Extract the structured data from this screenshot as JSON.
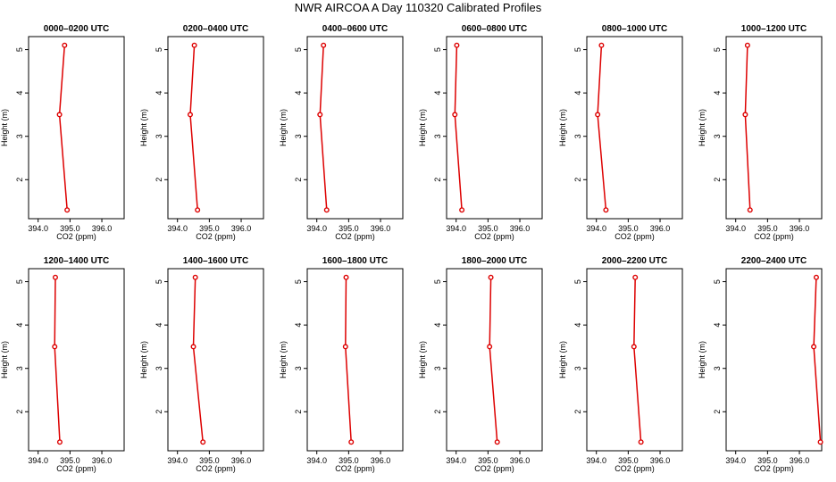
{
  "title": "NWR AIRCOA A  Day 110320  Calibrated Profiles",
  "colors": {
    "series": "#dd0000",
    "axis": "#000000",
    "background": "#ffffff"
  },
  "chart_data": [
    {
      "type": "line",
      "title": "0000–0200 UTC",
      "xlabel": "CO2 (ppm)",
      "ylabel": "Height (m)",
      "xlim": [
        393.7,
        396.7
      ],
      "ylim": [
        1.1,
        5.3
      ],
      "xticks": [
        "394.0",
        "395.0",
        "396.0"
      ],
      "yticks": [
        "2",
        "3",
        "4",
        "5"
      ],
      "x": [
        394.83,
        394.67,
        394.91
      ],
      "y": [
        5.1,
        3.5,
        1.3
      ]
    },
    {
      "type": "line",
      "title": "0200–0400 UTC",
      "xlabel": "CO2 (ppm)",
      "ylabel": "Height (m)",
      "xlim": [
        393.7,
        396.7
      ],
      "ylim": [
        1.1,
        5.3
      ],
      "xticks": [
        "394.0",
        "395.0",
        "396.0"
      ],
      "yticks": [
        "2",
        "3",
        "4",
        "5"
      ],
      "x": [
        394.53,
        394.4,
        394.63
      ],
      "y": [
        5.1,
        3.5,
        1.3
      ]
    },
    {
      "type": "line",
      "title": "0400–0600 UTC",
      "xlabel": "CO2 (ppm)",
      "ylabel": "Height (m)",
      "xlim": [
        393.7,
        396.7
      ],
      "ylim": [
        1.1,
        5.3
      ],
      "xticks": [
        "394.0",
        "395.0",
        "396.0"
      ],
      "yticks": [
        "2",
        "3",
        "4",
        "5"
      ],
      "x": [
        394.21,
        394.1,
        394.31
      ],
      "y": [
        5.1,
        3.5,
        1.3
      ]
    },
    {
      "type": "line",
      "title": "0600–0800 UTC",
      "xlabel": "CO2 (ppm)",
      "ylabel": "Height (m)",
      "xlim": [
        393.7,
        396.7
      ],
      "ylim": [
        1.1,
        5.3
      ],
      "xticks": [
        "394.0",
        "395.0",
        "396.0"
      ],
      "yticks": [
        "2",
        "3",
        "4",
        "5"
      ],
      "x": [
        394.02,
        393.96,
        394.18
      ],
      "y": [
        5.1,
        3.5,
        1.3
      ]
    },
    {
      "type": "line",
      "title": "0800–1000 UTC",
      "xlabel": "CO2 (ppm)",
      "ylabel": "Height (m)",
      "xlim": [
        393.7,
        396.7
      ],
      "ylim": [
        1.1,
        5.3
      ],
      "xticks": [
        "394.0",
        "395.0",
        "396.0"
      ],
      "yticks": [
        "2",
        "3",
        "4",
        "5"
      ],
      "x": [
        394.16,
        394.04,
        394.3
      ],
      "y": [
        5.1,
        3.5,
        1.3
      ]
    },
    {
      "type": "line",
      "title": "1000–1200 UTC",
      "xlabel": "CO2 (ppm)",
      "ylabel": "Height (m)",
      "xlim": [
        393.7,
        396.7
      ],
      "ylim": [
        1.1,
        5.3
      ],
      "xticks": [
        "394.0",
        "395.0",
        "396.0"
      ],
      "yticks": [
        "2",
        "3",
        "4",
        "5"
      ],
      "x": [
        394.37,
        394.3,
        394.45
      ],
      "y": [
        5.1,
        3.5,
        1.3
      ]
    },
    {
      "type": "line",
      "title": "1200–1400 UTC",
      "xlabel": "CO2 (ppm)",
      "ylabel": "Height (m)",
      "xlim": [
        393.7,
        396.7
      ],
      "ylim": [
        1.1,
        5.3
      ],
      "xticks": [
        "394.0",
        "395.0",
        "396.0"
      ],
      "yticks": [
        "2",
        "3",
        "4",
        "5"
      ],
      "x": [
        394.54,
        394.52,
        394.68
      ],
      "y": [
        5.1,
        3.5,
        1.3
      ]
    },
    {
      "type": "line",
      "title": "1400–1600 UTC",
      "xlabel": "CO2 (ppm)",
      "ylabel": "Height (m)",
      "xlim": [
        393.7,
        396.7
      ],
      "ylim": [
        1.1,
        5.3
      ],
      "xticks": [
        "394.0",
        "395.0",
        "396.0"
      ],
      "yticks": [
        "2",
        "3",
        "4",
        "5"
      ],
      "x": [
        394.56,
        394.5,
        394.8
      ],
      "y": [
        5.1,
        3.5,
        1.3
      ]
    },
    {
      "type": "line",
      "title": "1600–1800 UTC",
      "xlabel": "CO2 (ppm)",
      "ylabel": "Height (m)",
      "xlim": [
        393.7,
        396.7
      ],
      "ylim": [
        1.1,
        5.3
      ],
      "xticks": [
        "394.0",
        "395.0",
        "396.0"
      ],
      "yticks": [
        "2",
        "3",
        "4",
        "5"
      ],
      "x": [
        394.92,
        394.9,
        395.08
      ],
      "y": [
        5.1,
        3.5,
        1.3
      ]
    },
    {
      "type": "line",
      "title": "1800–2000 UTC",
      "xlabel": "CO2 (ppm)",
      "ylabel": "Height (m)",
      "xlim": [
        393.7,
        396.7
      ],
      "ylim": [
        1.1,
        5.3
      ],
      "xticks": [
        "394.0",
        "395.0",
        "396.0"
      ],
      "yticks": [
        "2",
        "3",
        "4",
        "5"
      ],
      "x": [
        395.09,
        395.05,
        395.29
      ],
      "y": [
        5.1,
        3.5,
        1.3
      ]
    },
    {
      "type": "line",
      "title": "2000–2200 UTC",
      "xlabel": "CO2 (ppm)",
      "ylabel": "Height (m)",
      "xlim": [
        393.7,
        396.7
      ],
      "ylim": [
        1.1,
        5.3
      ],
      "xticks": [
        "394.0",
        "395.0",
        "396.0"
      ],
      "yticks": [
        "2",
        "3",
        "4",
        "5"
      ],
      "x": [
        395.22,
        395.18,
        395.4
      ],
      "y": [
        5.1,
        3.5,
        1.3
      ]
    },
    {
      "type": "line",
      "title": "2200–2400 UTC",
      "xlabel": "CO2 (ppm)",
      "ylabel": "Height (m)",
      "xlim": [
        393.7,
        396.7
      ],
      "ylim": [
        1.1,
        5.3
      ],
      "xticks": [
        "394.0",
        "395.0",
        "396.0"
      ],
      "yticks": [
        "2",
        "3",
        "4",
        "5"
      ],
      "x": [
        396.53,
        396.45,
        396.66
      ],
      "y": [
        5.1,
        3.5,
        1.3
      ]
    }
  ]
}
